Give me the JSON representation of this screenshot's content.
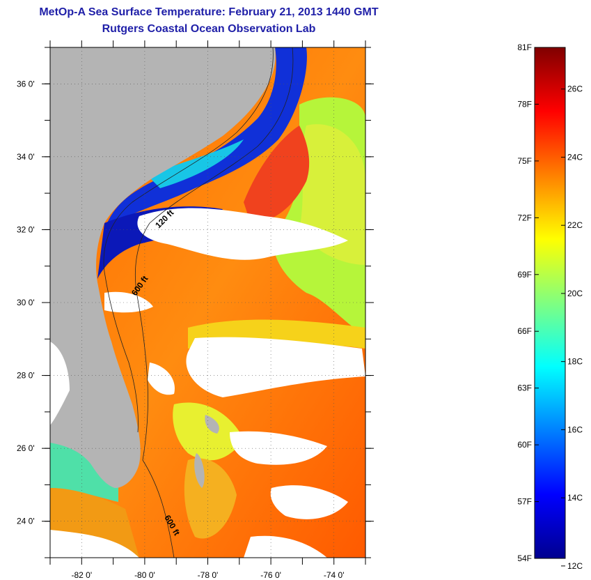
{
  "title": {
    "line1": "MetOp-A Sea Surface Temperature:  February 21, 2013 1440 GMT",
    "line2": "Rutgers Coastal Ocean Observation Lab"
  },
  "map": {
    "lat_ticks": [
      {
        "value": 36,
        "label": "36 0'"
      },
      {
        "value": 34,
        "label": "34 0'"
      },
      {
        "value": 32,
        "label": "32 0'"
      },
      {
        "value": 30,
        "label": "30 0'"
      },
      {
        "value": 28,
        "label": "28 0'"
      },
      {
        "value": 26,
        "label": "26 0'"
      },
      {
        "value": 24,
        "label": "24 0'"
      }
    ],
    "lon_ticks": [
      {
        "value": -82,
        "label": "-82 0'"
      },
      {
        "value": -80,
        "label": "-80 0'"
      },
      {
        "value": -78,
        "label": "-78 0'"
      },
      {
        "value": -76,
        "label": "-76 0'"
      },
      {
        "value": -74,
        "label": "-74 0'"
      }
    ],
    "lat_range": [
      23,
      37
    ],
    "lon_range": [
      -83,
      -73
    ],
    "contour_labels": [
      "120 ft",
      "600 ft",
      "600 ft"
    ],
    "land_color": "#b4b4b4",
    "cloud_color": "#ffffff"
  },
  "colorbar": {
    "fahrenheit_labels": [
      "81F",
      "78F",
      "75F",
      "72F",
      "69F",
      "66F",
      "63F",
      "60F",
      "57F",
      "54F"
    ],
    "celsius_labels": [
      "26C",
      "24C",
      "22C",
      "20C",
      "18C",
      "16C",
      "14C",
      "12C"
    ],
    "colors": [
      "#00008f",
      "#0000ff",
      "#0080ff",
      "#00ffff",
      "#80ff80",
      "#ffff00",
      "#ff8000",
      "#ff0000",
      "#800000"
    ],
    "range_f": [
      54,
      81
    ]
  }
}
